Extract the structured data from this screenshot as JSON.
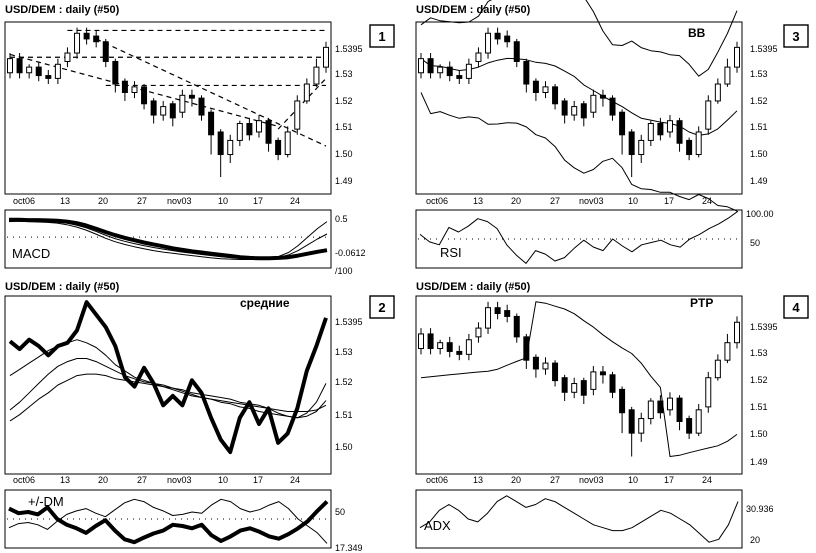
{
  "chart_data": [
    {
      "type": "candlestick",
      "panel_number": "1",
      "title": "USD/DEM : daily   (#50)",
      "overlay_label": "",
      "overlay": "trendlines",
      "x_tick_labels": [
        "oct06",
        "13",
        "20",
        "27",
        "nov03",
        "10",
        "17",
        "24"
      ],
      "y_tick_labels": [
        "1.5395",
        "1.53",
        "1.52",
        "1.51",
        "1.50",
        "1.49"
      ],
      "ylim": [
        1.486,
        1.547
      ],
      "grid": false,
      "indicator": {
        "name": "MACD",
        "tick_labels": [
          "0.5",
          "-0.0612",
          "/100"
        ],
        "ylim": [
          -0.8,
          0.7
        ],
        "dotted_level": 0,
        "series": [
          {
            "values": [
              0.45,
              0.45,
              0.44,
              0.44,
              0.43,
              0.42,
              0.4,
              0.36,
              0.3,
              0.22,
              0.13,
              0.05,
              -0.02,
              -0.08,
              -0.14,
              -0.19,
              -0.24,
              -0.29,
              -0.33,
              -0.37,
              -0.4,
              -0.43,
              -0.46,
              -0.49,
              -0.52,
              -0.54,
              -0.55,
              -0.55,
              -0.54,
              -0.52,
              -0.48,
              -0.43,
              -0.38,
              -0.34
            ]
          },
          {
            "values": [
              0.42,
              0.43,
              0.43,
              0.42,
              0.41,
              0.39,
              0.36,
              0.31,
              0.24,
              0.15,
              0.05,
              -0.04,
              -0.11,
              -0.17,
              -0.22,
              -0.27,
              -0.31,
              -0.35,
              -0.39,
              -0.42,
              -0.45,
              -0.48,
              -0.51,
              -0.53,
              -0.55,
              -0.56,
              -0.56,
              -0.55,
              -0.52,
              -0.46,
              -0.35,
              -0.2,
              -0.05,
              0.08
            ]
          },
          {
            "values": [
              0.4,
              0.41,
              0.4,
              0.39,
              0.38,
              0.36,
              0.32,
              0.26,
              0.18,
              0.08,
              -0.03,
              -0.12,
              -0.19,
              -0.25,
              -0.3,
              -0.35,
              -0.39,
              -0.42,
              -0.45,
              -0.48,
              -0.51,
              -0.54,
              -0.56,
              -0.57,
              -0.58,
              -0.58,
              -0.57,
              -0.55,
              -0.5,
              -0.4,
              -0.22,
              0.0,
              0.22,
              0.4
            ]
          }
        ]
      }
    },
    {
      "type": "line",
      "panel_number": "2",
      "title": "USD/DEM : daily   (#50)",
      "overlay_label": "средние",
      "overlay": "moving_averages",
      "x_tick_labels": [
        "oct06",
        "13",
        "20",
        "27",
        "nov03",
        "10",
        "17",
        "24"
      ],
      "y_tick_labels": [
        "1.5395",
        "1.53",
        "1.52",
        "1.51",
        "1.50"
      ],
      "ylim": [
        1.49,
        1.547
      ],
      "grid": false,
      "series": [
        {
          "values": [
            1.5325,
            1.53,
            1.533,
            1.531,
            1.528,
            1.531,
            1.532,
            1.536,
            1.545,
            1.541,
            1.537,
            1.531,
            1.521,
            1.518,
            1.524,
            1.519,
            1.512,
            1.515,
            1.512,
            1.52,
            1.516,
            1.508,
            1.501,
            1.497,
            1.508,
            1.513,
            1.506,
            1.511,
            1.5,
            1.503,
            1.511,
            1.523,
            1.531,
            1.54
          ]
        },
        {
          "values": [
            1.5215,
            1.5235,
            1.5255,
            1.5275,
            1.5295,
            1.531,
            1.532,
            1.533,
            1.532,
            1.5305,
            1.528,
            1.525,
            1.523,
            1.521,
            1.52,
            1.519,
            1.518,
            1.5175,
            1.517,
            1.516,
            1.5155,
            1.515,
            1.5145,
            1.514,
            1.513,
            1.5125,
            1.512,
            1.511,
            1.5095,
            1.5085,
            1.508,
            1.5095,
            1.513,
            1.519
          ]
        },
        {
          "values": [
            1.5105,
            1.513,
            1.516,
            1.519,
            1.522,
            1.5245,
            1.526,
            1.527,
            1.527,
            1.526,
            1.5245,
            1.523,
            1.5215,
            1.5205,
            1.5195,
            1.519,
            1.5185,
            1.5175,
            1.5165,
            1.5155,
            1.5145,
            1.514,
            1.513,
            1.5125,
            1.5115,
            1.511,
            1.51,
            1.5095,
            1.509,
            1.5085,
            1.508,
            1.5085,
            1.51,
            1.5135
          ]
        },
        {
          "values": [
            1.507,
            1.509,
            1.5115,
            1.514,
            1.516,
            1.5185,
            1.52,
            1.5215,
            1.522,
            1.522,
            1.5215,
            1.5205,
            1.52,
            1.5195,
            1.519,
            1.5185,
            1.518,
            1.517,
            1.516,
            1.515,
            1.5145,
            1.514,
            1.5135,
            1.513,
            1.5125,
            1.512,
            1.5115,
            1.511,
            1.5105,
            1.51,
            1.51,
            1.51,
            1.5105,
            1.512
          ]
        }
      ],
      "indicator": {
        "name": "+/-DM",
        "tick_labels": [
          "50",
          "17.349"
        ],
        "ylim": [
          0,
          100
        ],
        "dotted_level": 50,
        "series": [
          {
            "values": [
              68,
              60,
              62,
              58,
              70,
              50,
              40,
              34,
              26,
              38,
              48,
              30,
              15,
              10,
              18,
              25,
              30,
              40,
              38,
              34,
              40,
              22,
              12,
              20,
              30,
              34,
              28,
              20,
              16,
              24,
              34,
              46,
              64,
              80
            ]
          },
          {
            "values": [
              35,
              42,
              44,
              40,
              32,
              46,
              58,
              64,
              68,
              60,
              54,
              66,
              78,
              84,
              80,
              70,
              64,
              56,
              58,
              62,
              60,
              74,
              84,
              80,
              68,
              62,
              66,
              74,
              80,
              68,
              50,
              38,
              26,
              8
            ]
          }
        ]
      }
    },
    {
      "type": "candlestick",
      "panel_number": "3",
      "title": "USD/DEM : daily   (#50)",
      "overlay_label": "BB",
      "overlay": "bollinger_bands",
      "x_tick_labels": [
        "oct06",
        "13",
        "20",
        "27",
        "nov03",
        "10",
        "17",
        "24"
      ],
      "y_tick_labels": [
        "1.5395",
        "1.53",
        "1.52",
        "1.51",
        "1.50",
        "1.49"
      ],
      "ylim": [
        1.486,
        1.547
      ],
      "grid": false,
      "indicator": {
        "name": "RSI",
        "tick_labels": [
          "100.00",
          "50"
        ],
        "ylim": [
          0,
          100
        ],
        "dotted_level": 50,
        "series": [
          {
            "values": [
              58,
              45,
              40,
              70,
              62,
              72,
              85,
              80,
              68,
              40,
              22,
              8,
              30,
              24,
              12,
              18,
              34,
              48,
              36,
              30,
              50,
              38,
              28,
              40,
              44,
              48,
              40,
              36,
              50,
              58,
              68,
              76,
              86,
              98
            ]
          }
        ]
      }
    },
    {
      "type": "candlestick",
      "panel_number": "4",
      "title": "USD/DEM : daily   (#50)",
      "overlay_label": "PTP",
      "overlay": "parabolic",
      "x_tick_labels": [
        "oct06",
        "13",
        "20",
        "27",
        "nov03",
        "10",
        "17",
        "24"
      ],
      "y_tick_labels": [
        "1.5395",
        "1.53",
        "1.52",
        "1.51",
        "1.50",
        "1.49"
      ],
      "ylim": [
        1.486,
        1.547
      ],
      "grid": false,
      "indicator": {
        "name": "ADX",
        "tick_labels": [
          "30.936",
          "20"
        ],
        "ylim": [
          15,
          35
        ],
        "dotted_level": null,
        "series": [
          {
            "values": [
              22,
              24,
              28,
              30,
              28,
              25,
              24,
              27,
              31,
              33,
              31,
              29,
              30,
              32,
              31,
              29,
              27,
              25,
              23,
              22,
              21,
              21,
              22,
              24,
              26,
              28,
              27,
              25,
              23,
              20,
              17,
              18,
              23,
              31
            ]
          }
        ]
      }
    }
  ],
  "price": {
    "open": [
      1.529,
      1.534,
      1.529,
      1.531,
      1.528,
      1.527,
      1.533,
      1.536,
      1.543,
      1.542,
      1.54,
      1.533,
      1.526,
      1.522,
      1.524,
      1.519,
      1.514,
      1.518,
      1.515,
      1.521,
      1.52,
      1.515,
      1.508,
      1.5,
      1.505,
      1.511,
      1.508,
      1.512,
      1.505,
      1.5,
      1.509,
      1.519,
      1.525,
      1.531
    ],
    "close": [
      1.534,
      1.529,
      1.531,
      1.528,
      1.527,
      1.532,
      1.536,
      1.543,
      1.541,
      1.54,
      1.533,
      1.525,
      1.522,
      1.524,
      1.518,
      1.514,
      1.517,
      1.513,
      1.521,
      1.52,
      1.514,
      1.507,
      1.5,
      1.505,
      1.511,
      1.507,
      1.512,
      1.504,
      1.5,
      1.508,
      1.519,
      1.525,
      1.531,
      1.538
    ],
    "high": [
      1.536,
      1.536,
      1.532,
      1.533,
      1.53,
      1.534,
      1.538,
      1.545,
      1.545,
      1.544,
      1.541,
      1.534,
      1.527,
      1.526,
      1.525,
      1.52,
      1.519,
      1.519,
      1.523,
      1.523,
      1.521,
      1.516,
      1.509,
      1.507,
      1.512,
      1.513,
      1.514,
      1.513,
      1.506,
      1.51,
      1.521,
      1.527,
      1.534,
      1.54
    ],
    "low": [
      1.527,
      1.527,
      1.527,
      1.526,
      1.525,
      1.525,
      1.531,
      1.534,
      1.539,
      1.538,
      1.531,
      1.522,
      1.519,
      1.52,
      1.516,
      1.511,
      1.512,
      1.51,
      1.513,
      1.517,
      1.512,
      1.5,
      1.492,
      1.497,
      1.503,
      1.505,
      1.506,
      1.501,
      1.498,
      1.499,
      1.507,
      1.518,
      1.524,
      1.529
    ]
  }
}
